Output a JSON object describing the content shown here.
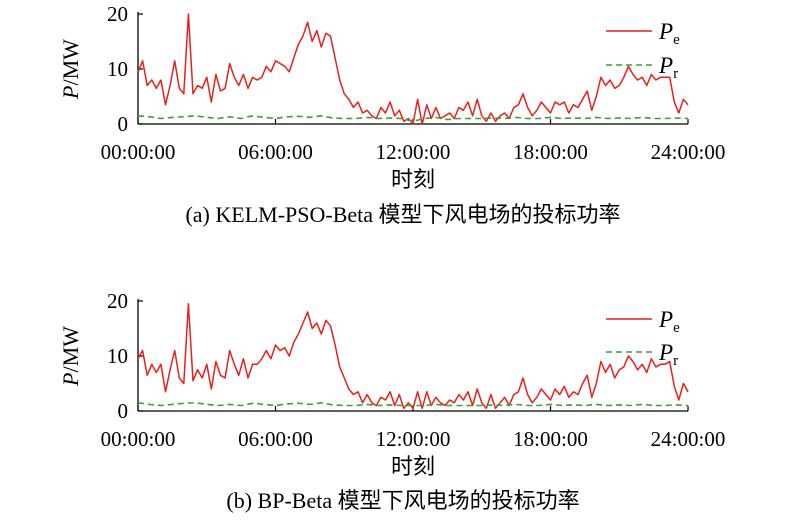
{
  "chart_data": [
    {
      "type": "line",
      "caption": "(a) KELM-PSO-Beta 模型下风电场的投标功率",
      "xlabel": "时刻",
      "ylabel": "P/MW",
      "ylabel_italic": "P",
      "ylabel_unit": "/MW",
      "xlim": [
        0,
        24
      ],
      "ylim": [
        0,
        20
      ],
      "x_ticks": [
        0,
        6,
        12,
        18,
        24
      ],
      "x_tick_labels": [
        "00:00:00",
        "06:00:00",
        "12:00:00",
        "18:00:00",
        "24:00:00"
      ],
      "y_ticks": [
        0,
        10,
        20
      ],
      "y_tick_labels": [
        "0",
        "10",
        "20"
      ],
      "grid": false,
      "legend_position": "top-right",
      "series": [
        {
          "name": "Pe",
          "name_main": "P",
          "name_sub": "e",
          "color": "#e8201a",
          "style": "solid",
          "x": [
            0.0,
            0.2,
            0.4,
            0.6,
            0.8,
            1.0,
            1.2,
            1.4,
            1.6,
            1.8,
            2.0,
            2.2,
            2.4,
            2.6,
            2.8,
            3.0,
            3.2,
            3.4,
            3.6,
            3.8,
            4.0,
            4.2,
            4.4,
            4.6,
            4.8,
            5.0,
            5.2,
            5.4,
            5.6,
            5.8,
            6.0,
            6.2,
            6.4,
            6.6,
            6.8,
            7.0,
            7.2,
            7.4,
            7.6,
            7.8,
            8.0,
            8.2,
            8.4,
            8.6,
            8.8,
            9.0,
            9.2,
            9.4,
            9.6,
            9.8,
            10.0,
            10.2,
            10.4,
            10.6,
            10.8,
            11.0,
            11.2,
            11.4,
            11.6,
            11.8,
            12.0,
            12.2,
            12.4,
            12.6,
            12.8,
            13.0,
            13.2,
            13.4,
            13.6,
            13.8,
            14.0,
            14.2,
            14.4,
            14.6,
            14.8,
            15.0,
            15.2,
            15.4,
            15.6,
            15.8,
            16.0,
            16.2,
            16.4,
            16.6,
            16.8,
            17.0,
            17.2,
            17.4,
            17.6,
            17.8,
            18.0,
            18.2,
            18.4,
            18.6,
            18.8,
            19.0,
            19.2,
            19.4,
            19.6,
            19.8,
            20.0,
            20.2,
            20.4,
            20.6,
            20.8,
            21.0,
            21.2,
            21.4,
            21.6,
            21.8,
            22.0,
            22.2,
            22.4,
            22.6,
            22.8,
            23.0,
            23.2,
            23.4,
            23.6,
            23.8,
            24.0
          ],
          "y": [
            9.5,
            11.5,
            7.0,
            8.0,
            6.5,
            8.0,
            3.5,
            7.0,
            11.5,
            6.5,
            5.5,
            20.0,
            5.5,
            7.0,
            6.5,
            8.5,
            4.0,
            9.0,
            6.0,
            6.5,
            11.0,
            8.5,
            7.0,
            9.0,
            6.5,
            8.5,
            8.0,
            8.5,
            10.5,
            9.5,
            11.5,
            11.0,
            10.5,
            9.5,
            12.0,
            14.5,
            16.0,
            18.5,
            15.0,
            17.0,
            14.0,
            16.5,
            16.0,
            12.0,
            8.0,
            5.5,
            4.5,
            3.0,
            4.0,
            2.0,
            2.5,
            1.5,
            1.0,
            3.0,
            2.0,
            4.0,
            1.5,
            2.5,
            0.5,
            1.0,
            0.0,
            4.5,
            0.0,
            3.5,
            1.0,
            3.0,
            1.0,
            1.5,
            2.0,
            1.0,
            3.0,
            2.5,
            4.0,
            1.5,
            4.5,
            1.5,
            0.5,
            2.0,
            0.5,
            1.5,
            2.0,
            1.0,
            3.0,
            3.5,
            5.5,
            3.0,
            1.5,
            2.5,
            4.0,
            3.0,
            2.0,
            4.0,
            3.5,
            4.0,
            2.0,
            3.5,
            3.0,
            4.5,
            6.0,
            2.5,
            5.0,
            8.5,
            7.0,
            8.0,
            6.5,
            7.0,
            8.5,
            10.5,
            9.0,
            8.0,
            8.5,
            7.0,
            9.0,
            8.0,
            8.5,
            8.5,
            8.5,
            4.0,
            2.0,
            4.5,
            3.5
          ]
        },
        {
          "name": "Pr",
          "name_main": "P",
          "name_sub": "r",
          "color": "#3aa02e",
          "style": "dashed",
          "x": [
            0.0,
            0.5,
            1.0,
            1.5,
            2.0,
            2.5,
            3.0,
            3.5,
            4.0,
            4.5,
            5.0,
            5.5,
            6.0,
            6.5,
            7.0,
            7.5,
            8.0,
            8.5,
            9.0,
            9.5,
            10.0,
            10.5,
            11.0,
            11.5,
            12.0,
            12.5,
            13.0,
            13.5,
            14.0,
            14.5,
            15.0,
            15.5,
            16.0,
            16.5,
            17.0,
            17.5,
            18.0,
            18.5,
            19.0,
            19.5,
            20.0,
            20.5,
            21.0,
            21.5,
            22.0,
            22.5,
            23.0,
            23.5,
            24.0
          ],
          "y": [
            1.5,
            1.3,
            1.0,
            1.2,
            1.3,
            1.5,
            1.2,
            1.0,
            1.3,
            1.0,
            1.5,
            1.2,
            1.0,
            1.3,
            1.4,
            1.2,
            1.5,
            1.1,
            1.0,
            1.0,
            1.2,
            1.0,
            1.1,
            1.0,
            0.5,
            1.0,
            1.2,
            0.8,
            1.0,
            1.0,
            1.0,
            1.1,
            1.0,
            1.2,
            1.0,
            1.0,
            1.2,
            1.0,
            1.1,
            1.0,
            1.2,
            1.0,
            1.1,
            1.0,
            1.2,
            1.0,
            1.0,
            1.1,
            1.0
          ]
        }
      ]
    },
    {
      "type": "line",
      "caption": "(b) BP-Beta 模型下风电场的投标功率",
      "xlabel": "时刻",
      "ylabel": "P/MW",
      "ylabel_italic": "P",
      "ylabel_unit": "/MW",
      "xlim": [
        0,
        24
      ],
      "ylim": [
        0,
        20
      ],
      "x_ticks": [
        0,
        6,
        12,
        18,
        24
      ],
      "x_tick_labels": [
        "00:00:00",
        "06:00:00",
        "12:00:00",
        "18:00:00",
        "24:00:00"
      ],
      "y_ticks": [
        0,
        10,
        20
      ],
      "y_tick_labels": [
        "0",
        "10",
        "20"
      ],
      "grid": false,
      "legend_position": "top-right",
      "series": [
        {
          "name": "Pe",
          "name_main": "P",
          "name_sub": "e",
          "color": "#e8201a",
          "style": "solid",
          "x": [
            0.0,
            0.2,
            0.4,
            0.6,
            0.8,
            1.0,
            1.2,
            1.4,
            1.6,
            1.8,
            2.0,
            2.2,
            2.4,
            2.6,
            2.8,
            3.0,
            3.2,
            3.4,
            3.6,
            3.8,
            4.0,
            4.2,
            4.4,
            4.6,
            4.8,
            5.0,
            5.2,
            5.4,
            5.6,
            5.8,
            6.0,
            6.2,
            6.4,
            6.6,
            6.8,
            7.0,
            7.2,
            7.4,
            7.6,
            7.8,
            8.0,
            8.2,
            8.4,
            8.6,
            8.8,
            9.0,
            9.2,
            9.4,
            9.6,
            9.8,
            10.0,
            10.2,
            10.4,
            10.6,
            10.8,
            11.0,
            11.2,
            11.4,
            11.6,
            11.8,
            12.0,
            12.2,
            12.4,
            12.6,
            12.8,
            13.0,
            13.2,
            13.4,
            13.6,
            13.8,
            14.0,
            14.2,
            14.4,
            14.6,
            14.8,
            15.0,
            15.2,
            15.4,
            15.6,
            15.8,
            16.0,
            16.2,
            16.4,
            16.6,
            16.8,
            17.0,
            17.2,
            17.4,
            17.6,
            17.8,
            18.0,
            18.2,
            18.4,
            18.6,
            18.8,
            19.0,
            19.2,
            19.4,
            19.6,
            19.8,
            20.0,
            20.2,
            20.4,
            20.6,
            20.8,
            21.0,
            21.2,
            21.4,
            21.6,
            21.8,
            22.0,
            22.2,
            22.4,
            22.6,
            22.8,
            23.0,
            23.2,
            23.4,
            23.6,
            23.8,
            24.0
          ],
          "y": [
            9.5,
            11.0,
            6.5,
            8.5,
            7.0,
            8.5,
            3.5,
            7.5,
            11.0,
            6.0,
            5.0,
            19.5,
            5.5,
            7.5,
            6.0,
            8.5,
            4.0,
            9.0,
            6.5,
            6.0,
            11.0,
            8.5,
            6.5,
            9.5,
            6.0,
            8.5,
            8.5,
            9.5,
            11.0,
            9.5,
            12.0,
            11.0,
            11.5,
            10.0,
            12.5,
            14.0,
            16.0,
            18.0,
            15.0,
            16.0,
            14.0,
            16.5,
            15.5,
            12.0,
            8.0,
            6.0,
            4.0,
            3.0,
            3.5,
            1.5,
            3.0,
            1.5,
            1.0,
            2.5,
            2.0,
            3.5,
            1.0,
            3.0,
            0.5,
            1.5,
            0.5,
            3.5,
            0.5,
            3.5,
            1.0,
            2.5,
            1.5,
            1.0,
            2.0,
            1.5,
            3.0,
            2.0,
            3.5,
            1.0,
            4.0,
            1.5,
            0.5,
            3.0,
            0.5,
            1.5,
            2.5,
            1.0,
            3.0,
            3.5,
            6.0,
            3.0,
            1.5,
            2.5,
            4.0,
            3.0,
            2.0,
            4.0,
            3.0,
            4.5,
            2.5,
            3.5,
            3.0,
            5.0,
            6.5,
            2.5,
            5.0,
            9.0,
            7.0,
            8.5,
            6.0,
            7.5,
            8.0,
            10.0,
            9.0,
            7.5,
            8.5,
            7.0,
            9.5,
            8.0,
            8.5,
            8.5,
            9.0,
            4.5,
            2.0,
            5.0,
            3.5
          ]
        },
        {
          "name": "Pr",
          "name_main": "P",
          "name_sub": "r",
          "color": "#3aa02e",
          "style": "dashed",
          "x": [
            0.0,
            0.5,
            1.0,
            1.5,
            2.0,
            2.5,
            3.0,
            3.5,
            4.0,
            4.5,
            5.0,
            5.5,
            6.0,
            6.5,
            7.0,
            7.5,
            8.0,
            8.5,
            9.0,
            9.5,
            10.0,
            10.5,
            11.0,
            11.5,
            12.0,
            12.5,
            13.0,
            13.5,
            14.0,
            14.5,
            15.0,
            15.5,
            16.0,
            16.5,
            17.0,
            17.5,
            18.0,
            18.5,
            19.0,
            19.5,
            20.0,
            20.5,
            21.0,
            21.5,
            22.0,
            22.5,
            23.0,
            23.5,
            24.0
          ],
          "y": [
            1.5,
            1.2,
            1.0,
            1.2,
            1.4,
            1.5,
            1.2,
            1.0,
            1.2,
            1.0,
            1.4,
            1.2,
            1.0,
            1.3,
            1.4,
            1.2,
            1.5,
            1.1,
            1.0,
            1.0,
            1.2,
            1.0,
            1.1,
            1.0,
            1.0,
            1.0,
            1.2,
            1.0,
            1.0,
            1.0,
            1.0,
            1.1,
            1.0,
            1.2,
            1.0,
            1.0,
            1.2,
            1.0,
            1.1,
            1.0,
            1.2,
            1.0,
            1.1,
            1.0,
            1.2,
            1.0,
            1.0,
            1.1,
            1.0
          ]
        }
      ]
    }
  ]
}
